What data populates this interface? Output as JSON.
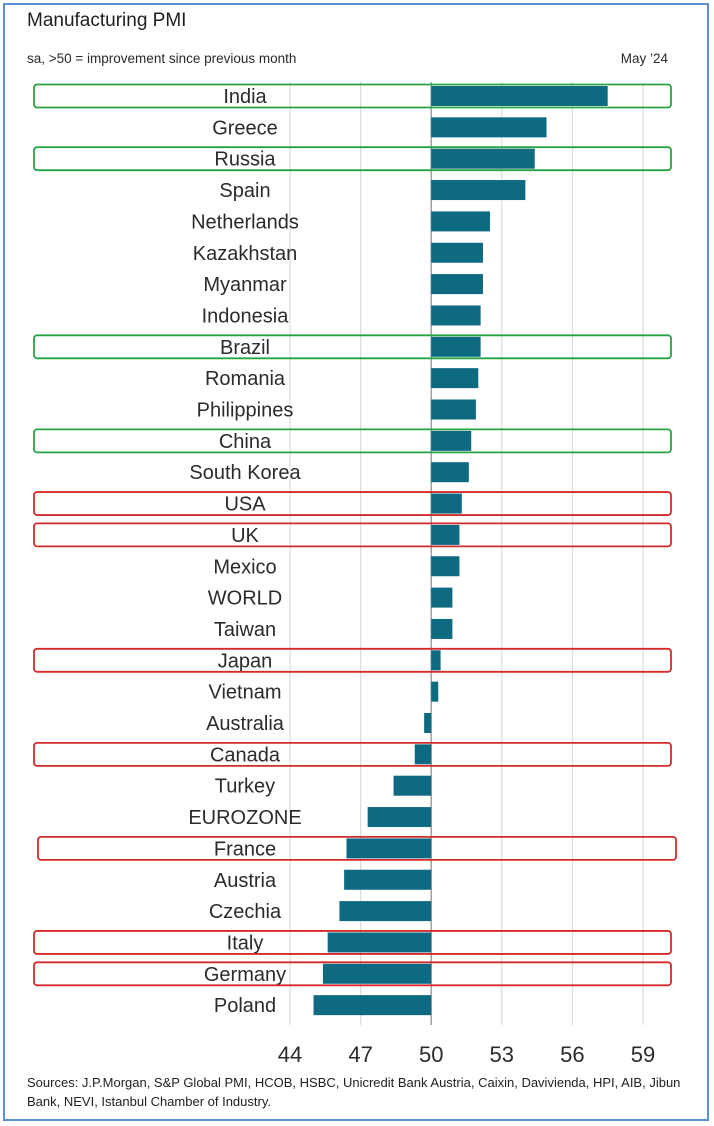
{
  "header": {
    "title": "Manufacturing PMI",
    "subtitle": "sa, >50 = improvement since previous month",
    "period": "May ’24"
  },
  "footer": {
    "sources": "Sources: J.P.Morgan, S&P Global PMI, HCOB, HSBC, Unicredit Bank Austria, Caixin, Davivienda, HPI, AIB, Jibun Bank, NEVI, Istanbul Chamber of Industry."
  },
  "chart_data": {
    "type": "bar",
    "orientation": "horizontal",
    "title": "Manufacturing PMI",
    "subtitle": "sa, >50 = improvement since previous month",
    "baseline": 50,
    "xlim": [
      44,
      60
    ],
    "xticks": [
      44,
      47,
      50,
      53,
      56,
      59
    ],
    "grid": true,
    "bar_color": "#0d6a80",
    "categories": [
      "India",
      "Greece",
      "Russia",
      "Spain",
      "Netherlands",
      "Kazakhstan",
      "Myanmar",
      "Indonesia",
      "Brazil",
      "Romania",
      "Philippines",
      "China",
      "South Korea",
      "USA",
      "UK",
      "Mexico",
      "WORLD",
      "Taiwan",
      "Japan",
      "Vietnam",
      "Australia",
      "Canada",
      "Turkey",
      "EUROZONE",
      "France",
      "Austria",
      "Czechia",
      "Italy",
      "Germany",
      "Poland"
    ],
    "values": [
      57.5,
      54.9,
      54.4,
      54.0,
      52.5,
      52.2,
      52.2,
      52.1,
      52.1,
      52.0,
      51.9,
      51.7,
      51.6,
      51.3,
      51.2,
      51.2,
      50.9,
      50.9,
      50.4,
      50.3,
      49.7,
      49.3,
      48.4,
      47.3,
      46.4,
      46.3,
      46.1,
      45.6,
      45.4,
      45.0
    ],
    "highlights": {
      "green": [
        "India",
        "Russia",
        "Brazil",
        "China"
      ],
      "red": [
        "USA",
        "UK",
        "Japan",
        "Canada",
        "France",
        "Italy",
        "Germany"
      ]
    },
    "highlight_colors": {
      "green": "#27a343",
      "red": "#d42a2a"
    }
  }
}
